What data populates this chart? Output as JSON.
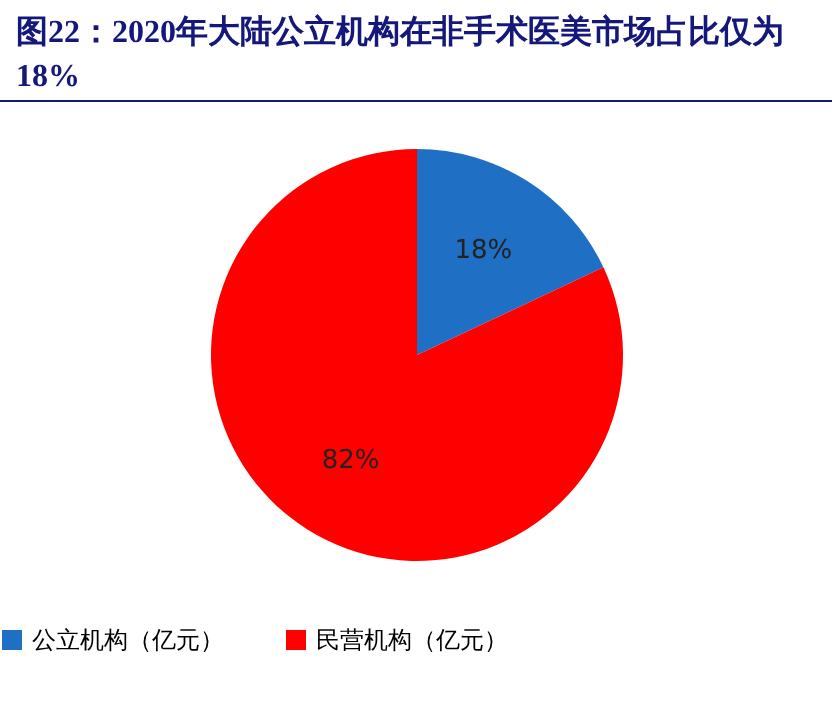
{
  "chart_data": {
    "type": "pie",
    "title": "图22：2020年大陆公立机构在非手术医美市场占比仅为18%",
    "categories": [
      "公立机构（亿元）",
      "民营机构（亿元）"
    ],
    "values": [
      18,
      82
    ],
    "colors": [
      "#1f6fc5",
      "#ff0000"
    ],
    "value_labels": [
      "18%",
      "82%"
    ],
    "legend": "bottom"
  }
}
